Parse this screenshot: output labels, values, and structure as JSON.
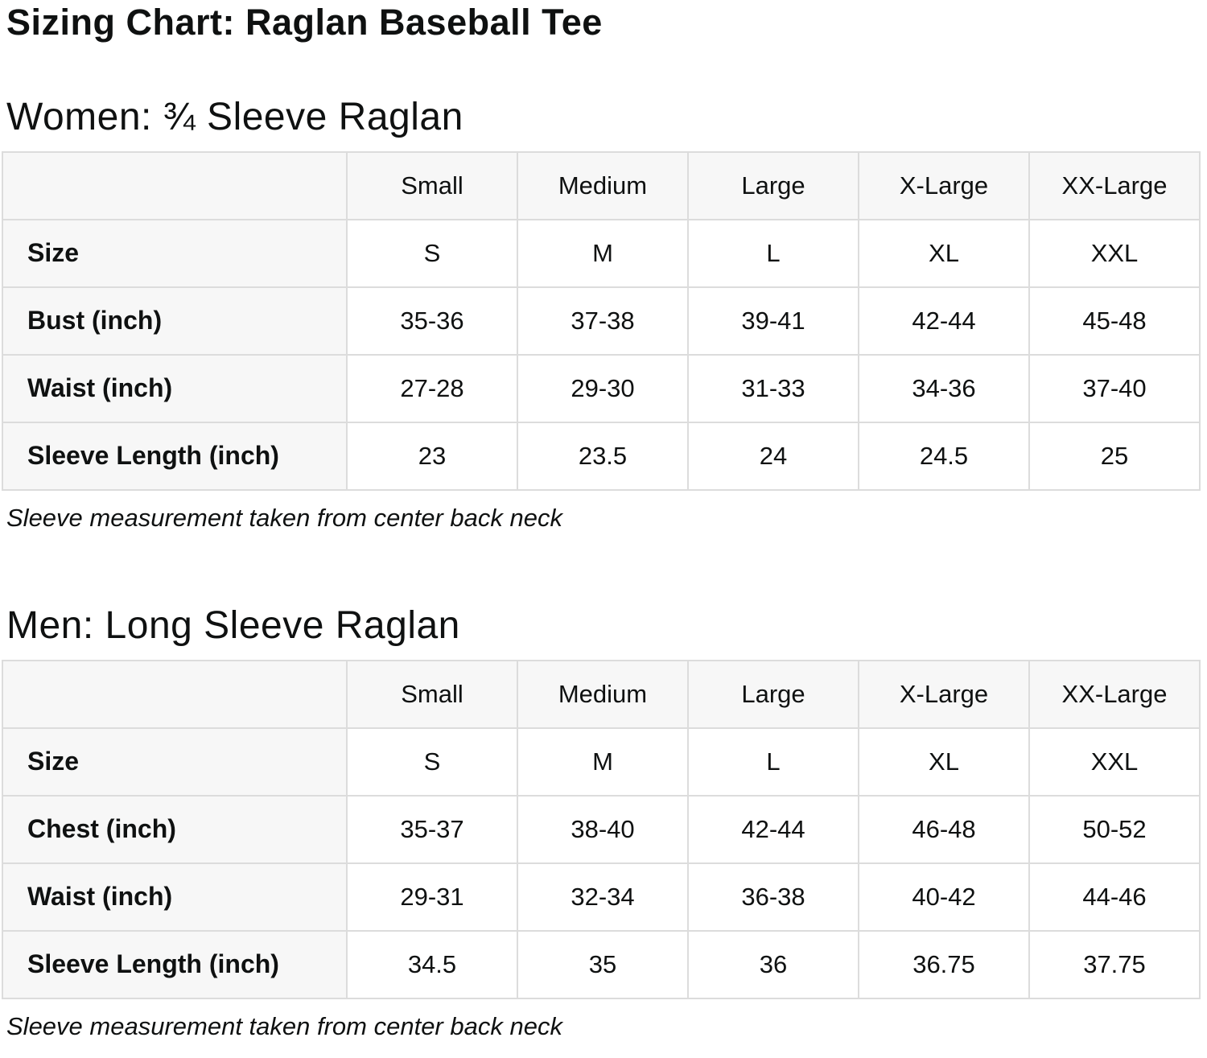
{
  "page": {
    "title": "Sizing Chart: Raglan Baseball Tee"
  },
  "colors": {
    "cell_shade": "#f7f7f7",
    "border": "#dcdcdc",
    "text": "#0f1111",
    "background": "#ffffff"
  },
  "sections": [
    {
      "heading": "Women: ¾ Sleeve Raglan",
      "note": "Sleeve measurement taken from center back neck",
      "table": {
        "columns": [
          "Small",
          "Medium",
          "Large",
          "X-Large",
          "XX-Large"
        ],
        "rows": [
          {
            "label": "Size",
            "values": [
              "S",
              "M",
              "L",
              "XL",
              "XXL"
            ]
          },
          {
            "label": "Bust (inch)",
            "values": [
              "35-36",
              "37-38",
              "39-41",
              "42-44",
              "45-48"
            ]
          },
          {
            "label": "Waist (inch)",
            "values": [
              "27-28",
              "29-30",
              "31-33",
              "34-36",
              "37-40"
            ]
          },
          {
            "label": "Sleeve Length (inch)",
            "values": [
              "23",
              "23.5",
              "24",
              "24.5",
              "25"
            ]
          }
        ]
      }
    },
    {
      "heading": "Men: Long Sleeve Raglan",
      "note": "Sleeve measurement taken from center back neck",
      "table": {
        "columns": [
          "Small",
          "Medium",
          "Large",
          "X-Large",
          "XX-Large"
        ],
        "rows": [
          {
            "label": "Size",
            "values": [
              "S",
              "M",
              "L",
              "XL",
              "XXL"
            ]
          },
          {
            "label": "Chest (inch)",
            "values": [
              "35-37",
              "38-40",
              "42-44",
              "46-48",
              "50-52"
            ]
          },
          {
            "label": "Waist (inch)",
            "values": [
              "29-31",
              "32-34",
              "36-38",
              "40-42",
              "44-46"
            ]
          },
          {
            "label": "Sleeve Length (inch)",
            "values": [
              "34.5",
              "35",
              "36",
              "36.75",
              "37.75"
            ]
          }
        ]
      }
    }
  ]
}
